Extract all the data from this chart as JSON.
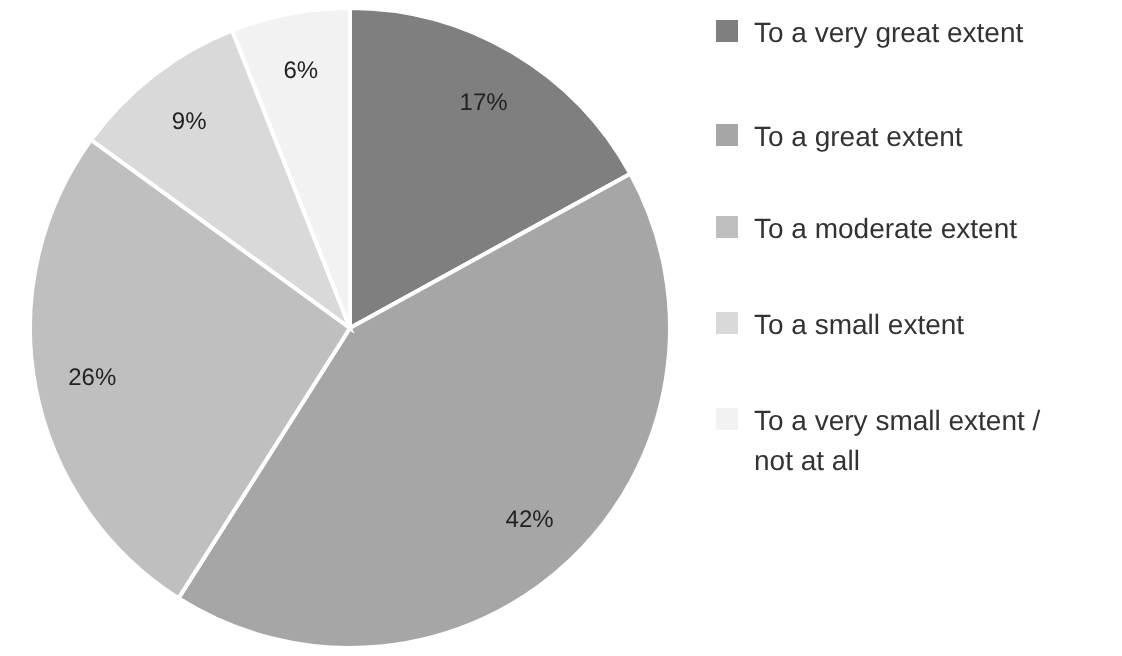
{
  "chart_data": {
    "type": "pie",
    "categories": [
      "To a very great extent",
      "To a great extent",
      "To a moderate extent",
      "To a small extent",
      "To a very small extent / not at all"
    ],
    "values": [
      17,
      42,
      26,
      9,
      6
    ],
    "colors": [
      "#7f7f7f",
      "#a6a6a6",
      "#bfbfbf",
      "#d9d9d9",
      "#f2f2f2"
    ],
    "value_labels": [
      "17%",
      "42%",
      "26%",
      "9%",
      "6%"
    ],
    "legend": "right"
  }
}
